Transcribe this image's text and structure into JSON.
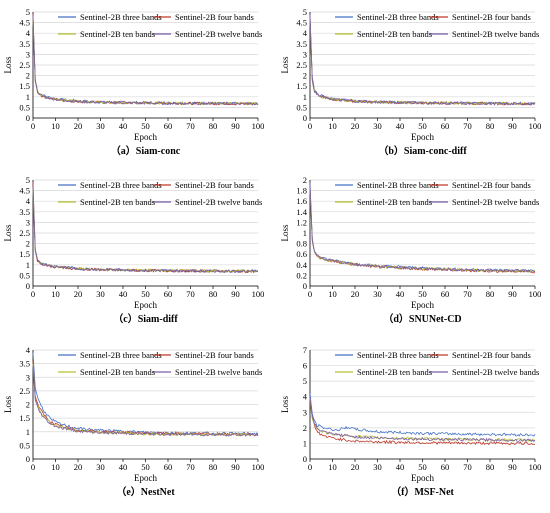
{
  "legend_labels": [
    "Sentinel-2B three bands",
    "Sentinel-2B four bands",
    "Sentinel-2B ten bands",
    "Sentinel-2B twelve bands"
  ],
  "colors": {
    "three": "#4472c4",
    "four": "#c0392b",
    "ten": "#b5c232",
    "twelve": "#7b5ea7",
    "grid": "#d9d9d9",
    "axis": "#000000"
  },
  "chart_data": [
    {
      "type": "line",
      "caption": "（a）Siam-conc",
      "xlabel": "Epoch",
      "ylabel": "Loss",
      "xlim": [
        0,
        100
      ],
      "ylim": [
        0,
        5
      ],
      "xticks": [
        "0",
        "10",
        "20",
        "30",
        "40",
        "50",
        "60",
        "70",
        "80",
        "90",
        "100"
      ],
      "yticks": [
        "0",
        "0.5",
        "1",
        "1.5",
        "2",
        "2.5",
        "3",
        "3.5",
        "4",
        "4.5",
        "5"
      ],
      "series": [
        {
          "name": "Sentinel-2B three bands",
          "color": "three",
          "x": [
            0,
            1,
            2,
            3,
            5,
            8,
            12,
            20,
            30,
            50,
            70,
            100
          ],
          "y": [
            4.8,
            1.8,
            1.3,
            1.15,
            1.05,
            0.95,
            0.88,
            0.8,
            0.75,
            0.72,
            0.7,
            0.68
          ]
        },
        {
          "name": "Sentinel-2B four bands",
          "color": "four",
          "x": [
            0,
            1,
            2,
            3,
            5,
            8,
            12,
            20,
            30,
            50,
            70,
            100
          ],
          "y": [
            4.9,
            1.7,
            1.25,
            1.1,
            1.0,
            0.92,
            0.85,
            0.78,
            0.74,
            0.71,
            0.69,
            0.67
          ]
        },
        {
          "name": "Sentinel-2B ten bands",
          "color": "ten",
          "x": [
            0,
            1,
            2,
            3,
            5,
            8,
            12,
            20,
            30,
            50,
            70,
            100
          ],
          "y": [
            4.7,
            1.75,
            1.28,
            1.12,
            1.02,
            0.93,
            0.86,
            0.79,
            0.74,
            0.71,
            0.7,
            0.68
          ]
        },
        {
          "name": "Sentinel-2B twelve bands",
          "color": "twelve",
          "x": [
            0,
            1,
            2,
            3,
            5,
            8,
            12,
            20,
            30,
            50,
            70,
            100
          ],
          "y": [
            4.85,
            1.72,
            1.26,
            1.1,
            1.01,
            0.92,
            0.85,
            0.78,
            0.73,
            0.7,
            0.69,
            0.67
          ]
        }
      ]
    },
    {
      "type": "line",
      "caption": "（b）Siam-conc-diff",
      "xlabel": "Epoch",
      "ylabel": "Loss",
      "xlim": [
        0,
        100
      ],
      "ylim": [
        0,
        5
      ],
      "xticks": [
        "0",
        "10",
        "20",
        "30",
        "40",
        "50",
        "60",
        "70",
        "80",
        "90",
        "100"
      ],
      "yticks": [
        "0",
        "0.5",
        "1",
        "1.5",
        "2",
        "2.5",
        "3",
        "3.5",
        "4",
        "4.5",
        "5"
      ],
      "series": [
        {
          "name": "Sentinel-2B three bands",
          "color": "three",
          "x": [
            0,
            1,
            2,
            3,
            5,
            8,
            12,
            20,
            30,
            50,
            70,
            100
          ],
          "y": [
            4.9,
            1.9,
            1.3,
            1.15,
            1.05,
            0.95,
            0.88,
            0.8,
            0.76,
            0.72,
            0.7,
            0.68
          ]
        },
        {
          "name": "Sentinel-2B four bands",
          "color": "four",
          "x": [
            0,
            1,
            2,
            3,
            5,
            8,
            12,
            20,
            30,
            50,
            70,
            100
          ],
          "y": [
            4.8,
            1.8,
            1.25,
            1.1,
            1.0,
            0.92,
            0.86,
            0.79,
            0.75,
            0.71,
            0.69,
            0.67
          ]
        },
        {
          "name": "Sentinel-2B ten bands",
          "color": "ten",
          "x": [
            0,
            1,
            2,
            3,
            5,
            8,
            12,
            20,
            30,
            50,
            70,
            100
          ],
          "y": [
            4.7,
            1.75,
            1.27,
            1.12,
            1.02,
            0.93,
            0.87,
            0.8,
            0.75,
            0.72,
            0.7,
            0.68
          ]
        },
        {
          "name": "Sentinel-2B twelve bands",
          "color": "twelve",
          "x": [
            0,
            1,
            2,
            3,
            5,
            8,
            12,
            20,
            30,
            50,
            70,
            100
          ],
          "y": [
            4.85,
            1.78,
            1.26,
            1.11,
            1.01,
            0.92,
            0.86,
            0.79,
            0.74,
            0.71,
            0.69,
            0.67
          ]
        }
      ]
    },
    {
      "type": "line",
      "caption": "（c）Siam-diff",
      "xlabel": "Epoch",
      "ylabel": "Loss",
      "xlim": [
        0,
        100
      ],
      "ylim": [
        0,
        5
      ],
      "xticks": [
        "0",
        "10",
        "20",
        "30",
        "40",
        "50",
        "60",
        "70",
        "80",
        "90",
        "100"
      ],
      "yticks": [
        "0",
        "0.5",
        "1",
        "1.5",
        "2",
        "2.5",
        "3",
        "3.5",
        "4",
        "4.5",
        "5"
      ],
      "series": [
        {
          "name": "Sentinel-2B three bands",
          "color": "three",
          "x": [
            0,
            1,
            2,
            3,
            5,
            8,
            12,
            20,
            30,
            50,
            70,
            100
          ],
          "y": [
            4.5,
            1.6,
            1.2,
            1.1,
            1.02,
            0.95,
            0.9,
            0.83,
            0.78,
            0.74,
            0.72,
            0.7
          ]
        },
        {
          "name": "Sentinel-2B four bands",
          "color": "four",
          "x": [
            0,
            1,
            2,
            3,
            5,
            8,
            12,
            20,
            30,
            50,
            70,
            100
          ],
          "y": [
            4.9,
            1.7,
            1.22,
            1.1,
            1.0,
            0.93,
            0.88,
            0.81,
            0.77,
            0.73,
            0.71,
            0.69
          ]
        },
        {
          "name": "Sentinel-2B ten bands",
          "color": "ten",
          "x": [
            0,
            1,
            2,
            3,
            5,
            8,
            12,
            20,
            30,
            50,
            70,
            100
          ],
          "y": [
            4.6,
            1.65,
            1.21,
            1.1,
            1.01,
            0.94,
            0.89,
            0.82,
            0.77,
            0.74,
            0.72,
            0.7
          ]
        },
        {
          "name": "Sentinel-2B twelve bands",
          "color": "twelve",
          "x": [
            0,
            1,
            2,
            3,
            5,
            8,
            12,
            20,
            30,
            50,
            70,
            100
          ],
          "y": [
            4.7,
            1.68,
            1.22,
            1.1,
            1.0,
            0.93,
            0.88,
            0.81,
            0.76,
            0.73,
            0.71,
            0.69
          ]
        }
      ]
    },
    {
      "type": "line",
      "caption": "（d）SNUNet-CD",
      "xlabel": "Epoch",
      "ylabel": "Loss",
      "xlim": [
        0,
        100
      ],
      "ylim": [
        0,
        2
      ],
      "xticks": [
        "0",
        "10",
        "20",
        "30",
        "40",
        "50",
        "60",
        "70",
        "80",
        "90",
        "100"
      ],
      "yticks": [
        "0",
        "0.2",
        "0.4",
        "0.6",
        "0.8",
        "1",
        "1.2",
        "1.4",
        "1.6",
        "1.8",
        "2"
      ],
      "series": [
        {
          "name": "Sentinel-2B three bands",
          "color": "three",
          "x": [
            0,
            1,
            2,
            3,
            5,
            8,
            12,
            20,
            30,
            50,
            70,
            100
          ],
          "y": [
            1.95,
            0.9,
            0.65,
            0.6,
            0.55,
            0.5,
            0.47,
            0.42,
            0.38,
            0.34,
            0.31,
            0.29
          ]
        },
        {
          "name": "Sentinel-2B four bands",
          "color": "four",
          "x": [
            0,
            1,
            2,
            3,
            5,
            8,
            12,
            20,
            30,
            50,
            70,
            100
          ],
          "y": [
            1.9,
            0.85,
            0.62,
            0.57,
            0.52,
            0.48,
            0.45,
            0.4,
            0.36,
            0.32,
            0.29,
            0.27
          ]
        },
        {
          "name": "Sentinel-2B ten bands",
          "color": "ten",
          "x": [
            0,
            1,
            2,
            3,
            5,
            8,
            12,
            20,
            30,
            50,
            70,
            100
          ],
          "y": [
            1.85,
            0.88,
            0.64,
            0.58,
            0.53,
            0.49,
            0.46,
            0.41,
            0.37,
            0.33,
            0.3,
            0.28
          ]
        },
        {
          "name": "Sentinel-2B twelve bands",
          "color": "twelve",
          "x": [
            0,
            1,
            2,
            3,
            5,
            8,
            12,
            20,
            30,
            50,
            70,
            100
          ],
          "y": [
            1.9,
            0.87,
            0.63,
            0.58,
            0.53,
            0.49,
            0.46,
            0.41,
            0.37,
            0.33,
            0.3,
            0.28
          ]
        }
      ]
    },
    {
      "type": "line",
      "caption": "（e）NestNet",
      "xlabel": "Epoch",
      "ylabel": "Loss",
      "xlim": [
        0,
        100
      ],
      "ylim": [
        0,
        4
      ],
      "xticks": [
        "0",
        "10",
        "20",
        "30",
        "40",
        "50",
        "60",
        "70",
        "80",
        "90",
        "100"
      ],
      "yticks": [
        "0",
        "0.5",
        "1",
        "1.5",
        "2",
        "2.5",
        "3",
        "3.5",
        "4"
      ],
      "series": [
        {
          "name": "Sentinel-2B three bands",
          "color": "three",
          "x": [
            0,
            1,
            2,
            3,
            5,
            8,
            12,
            20,
            30,
            50,
            70,
            100
          ],
          "y": [
            3.9,
            2.6,
            2.3,
            2.05,
            1.75,
            1.45,
            1.28,
            1.12,
            1.05,
            0.98,
            0.95,
            0.93
          ]
        },
        {
          "name": "Sentinel-2B four bands",
          "color": "four",
          "x": [
            0,
            1,
            2,
            3,
            5,
            8,
            12,
            20,
            30,
            50,
            70,
            100
          ],
          "y": [
            3.6,
            2.3,
            2.05,
            1.85,
            1.6,
            1.35,
            1.2,
            1.06,
            1.0,
            0.95,
            0.92,
            0.9
          ]
        },
        {
          "name": "Sentinel-2B ten bands",
          "color": "ten",
          "x": [
            0,
            1,
            2,
            3,
            5,
            8,
            12,
            20,
            30,
            50,
            70,
            100
          ],
          "y": [
            3.5,
            2.2,
            1.95,
            1.78,
            1.55,
            1.3,
            1.17,
            1.04,
            0.98,
            0.93,
            0.91,
            0.89
          ]
        },
        {
          "name": "Sentinel-2B twelve bands",
          "color": "twelve",
          "x": [
            0,
            1,
            2,
            3,
            5,
            8,
            12,
            20,
            30,
            50,
            70,
            100
          ],
          "y": [
            3.4,
            2.15,
            1.9,
            1.72,
            1.5,
            1.28,
            1.15,
            1.03,
            0.97,
            0.92,
            0.9,
            0.88
          ]
        }
      ]
    },
    {
      "type": "line",
      "caption": "（f）MSF-Net",
      "xlabel": "Epoch",
      "ylabel": "Loss",
      "xlim": [
        0,
        100
      ],
      "ylim": [
        0,
        7
      ],
      "xticks": [
        "0",
        "10",
        "20",
        "30",
        "40",
        "50",
        "60",
        "70",
        "80",
        "90",
        "100"
      ],
      "yticks": [
        "0",
        "1",
        "2",
        "3",
        "4",
        "5",
        "6",
        "7"
      ],
      "series": [
        {
          "name": "Sentinel-2B three bands",
          "color": "three",
          "x": [
            0,
            1,
            2,
            3,
            5,
            8,
            12,
            17,
            20,
            30,
            50,
            70,
            100
          ],
          "y": [
            4.2,
            2.9,
            2.4,
            2.2,
            2.05,
            1.95,
            1.85,
            2.05,
            1.9,
            1.75,
            1.65,
            1.6,
            1.55
          ]
        },
        {
          "name": "Sentinel-2B four bands",
          "color": "four",
          "x": [
            0,
            1,
            2,
            3,
            5,
            8,
            12,
            17,
            20,
            30,
            50,
            70,
            100
          ],
          "y": [
            3.8,
            2.6,
            2.1,
            1.8,
            1.55,
            1.4,
            1.3,
            1.2,
            1.15,
            1.1,
            1.05,
            1.02,
            1.0
          ]
        },
        {
          "name": "Sentinel-2B ten bands",
          "color": "ten",
          "x": [
            0,
            1,
            2,
            3,
            5,
            8,
            12,
            17,
            20,
            30,
            50,
            70,
            100
          ],
          "y": [
            3.9,
            2.7,
            2.2,
            2.0,
            1.8,
            1.65,
            1.55,
            1.5,
            1.45,
            1.38,
            1.3,
            1.25,
            1.22
          ]
        },
        {
          "name": "Sentinel-2B twelve bands",
          "color": "twelve",
          "x": [
            0,
            1,
            2,
            3,
            5,
            8,
            12,
            17,
            20,
            30,
            50,
            70,
            100
          ],
          "y": [
            4.0,
            2.75,
            2.25,
            2.0,
            1.8,
            1.65,
            1.55,
            1.5,
            1.42,
            1.35,
            1.28,
            1.24,
            1.2
          ]
        }
      ]
    }
  ]
}
